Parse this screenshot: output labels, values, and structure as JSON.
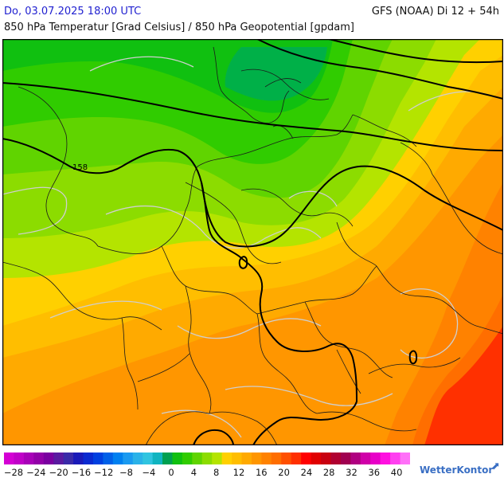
{
  "header": {
    "date": "Do, 03.07.2025 18:00 UTC",
    "model": "GFS (NOAA) Di 12 + 54h",
    "subtitle": "850 hPa Temperatur [Grad Celsius] / 850 hPa Geopotential [gpdam]"
  },
  "map": {
    "contour_label": "158",
    "region": "Central Europe"
  },
  "legend": {
    "tick_labels": [
      "−28",
      "−24",
      "−20",
      "−16",
      "−12",
      "−8",
      "−4",
      "0",
      "4",
      "8",
      "12",
      "16",
      "20",
      "24",
      "28",
      "32",
      "36",
      "40"
    ],
    "colors": [
      "#d400d4",
      "#c000c8",
      "#a800b8",
      "#9200a8",
      "#7a00a0",
      "#5a1aa0",
      "#3a2aa8",
      "#1a1ab8",
      "#0a2ad0",
      "#0040e0",
      "#0060e8",
      "#0080f0",
      "#1a9af0",
      "#2ab2e8",
      "#30c4e0",
      "#10b4c0",
      "#00a050",
      "#10c010",
      "#30cc00",
      "#60d400",
      "#8cdc00",
      "#b4e400",
      "#ffd000",
      "#ffbe00",
      "#ffaa00",
      "#ff9600",
      "#ff8200",
      "#ff6e00",
      "#ff5000",
      "#ff3000",
      "#ff0000",
      "#e00000",
      "#c80010",
      "#b00030",
      "#a00050",
      "#b00080",
      "#d000a8",
      "#e800c8",
      "#ff10e0",
      "#ff40f0",
      "#ff70f8"
    ]
  },
  "brand": {
    "name": "WetterKontor",
    "mark": "⬈"
  }
}
